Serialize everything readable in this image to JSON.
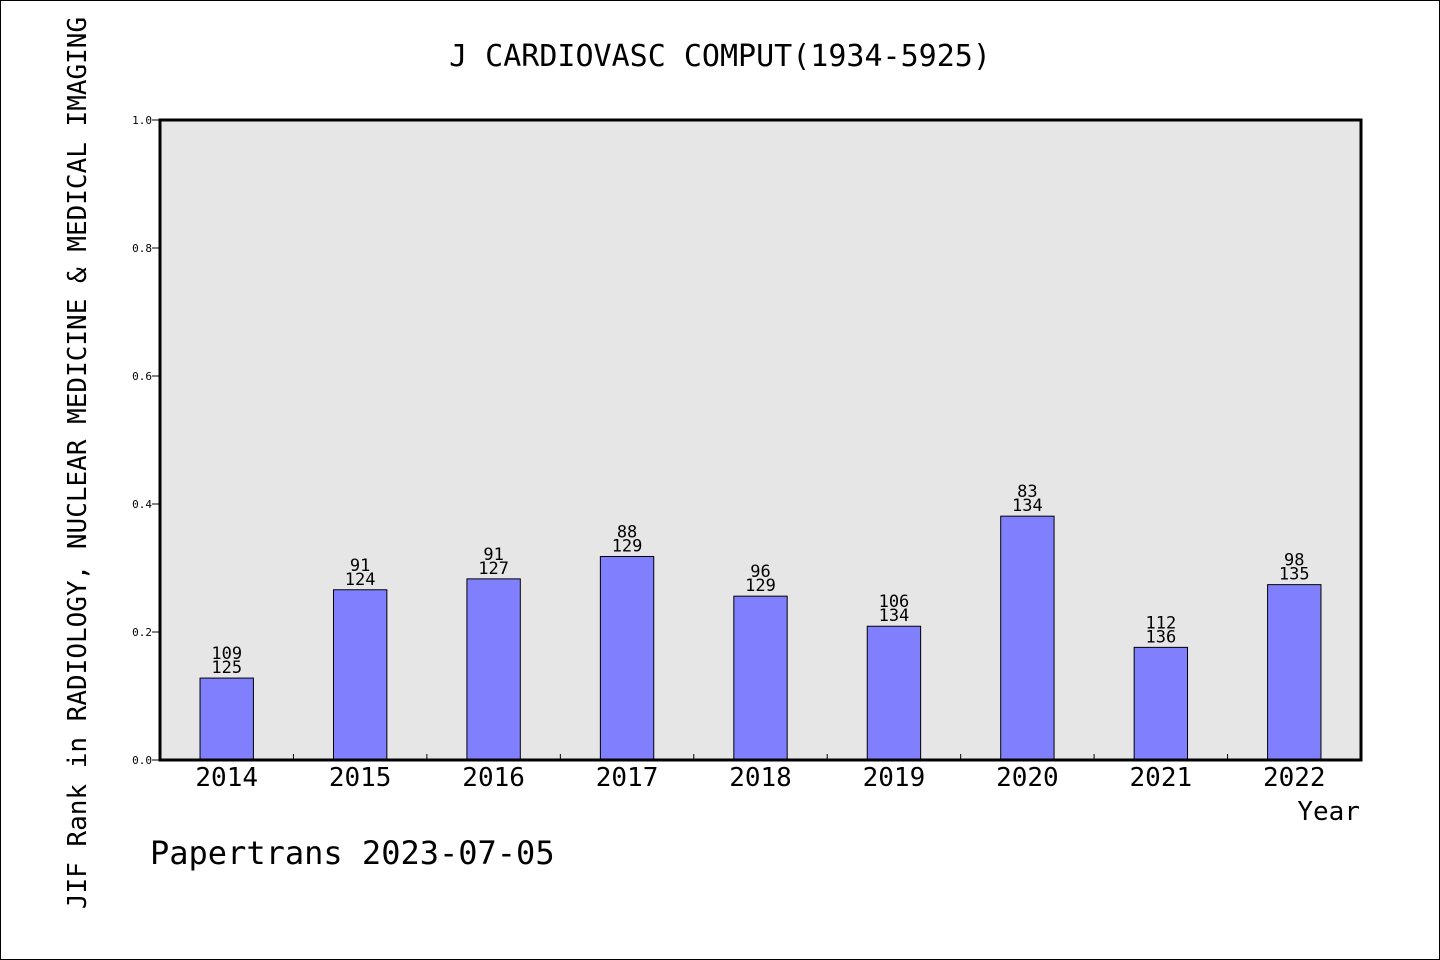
{
  "chart_data": {
    "type": "bar",
    "title": "J CARDIOVASC COMPUT(1934-5925)",
    "xlabel": "Year",
    "ylabel": "JIF Rank in RADIOLOGY, NUCLEAR MEDICINE & MEDICAL IMAGING",
    "ylim": [
      0,
      1.0
    ],
    "yticks": [
      "0.0",
      "0.2",
      "0.4",
      "0.6",
      "0.8",
      "1.0"
    ],
    "categories": [
      "2014",
      "2015",
      "2016",
      "2017",
      "2018",
      "2019",
      "2020",
      "2021",
      "2022"
    ],
    "values": [
      0.128,
      0.266,
      0.283,
      0.318,
      0.256,
      0.209,
      0.381,
      0.176,
      0.274
    ],
    "rank": [
      "109",
      "91",
      "91",
      "88",
      "96",
      "106",
      "83",
      "112",
      "98"
    ],
    "total": [
      "125",
      "124",
      "127",
      "129",
      "129",
      "134",
      "134",
      "136",
      "135"
    ],
    "grid": false,
    "bar_color": "#8080ff",
    "plot_background": "#e6e6e6"
  },
  "footer": "Papertrans 2023-07-05"
}
